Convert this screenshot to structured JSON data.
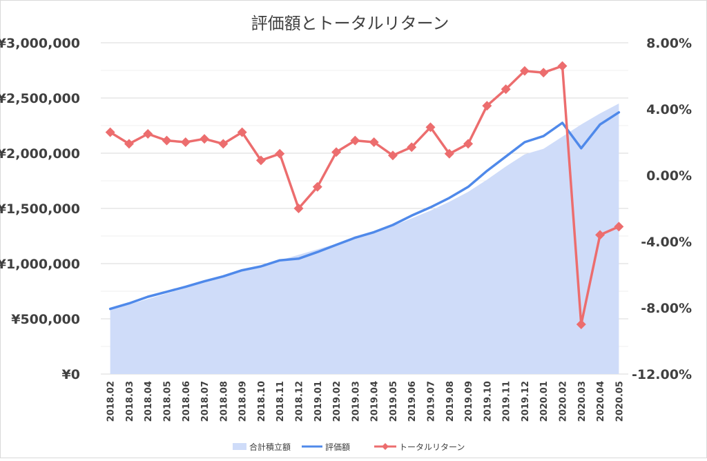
{
  "chart_data": {
    "type": "line",
    "title": "評価額とトータルリターン",
    "categories": [
      "2018.02",
      "2018.03",
      "2018.04",
      "2018.05",
      "2018.06",
      "2018.07",
      "2018.08",
      "2018.09",
      "2018.10",
      "2018.11",
      "2018.12",
      "2019.01",
      "2019.02",
      "2019.03",
      "2019.04",
      "2019.05",
      "2019.06",
      "2019.07",
      "2019.08",
      "2019.09",
      "2019.10",
      "2019.11",
      "2019.12",
      "2020.01",
      "2020.02",
      "2020.03",
      "2020.04",
      "2020.05"
    ],
    "series": [
      {
        "name": "合計積立額",
        "type": "area",
        "axis": "left",
        "color": "#cfdcf9",
        "values": [
          580000,
          630000,
          680000,
          730000,
          780000,
          830000,
          880000,
          930000,
          980000,
          1030000,
          1080000,
          1130000,
          1180000,
          1230000,
          1280000,
          1340000,
          1410000,
          1480000,
          1560000,
          1650000,
          1760000,
          1880000,
          1990000,
          2040000,
          2150000,
          2260000,
          2360000,
          2450000
        ]
      },
      {
        "name": "評価額",
        "type": "line",
        "axis": "left",
        "color": "#4f89ea",
        "values": [
          590000,
          640000,
          700000,
          745000,
          790000,
          840000,
          885000,
          940000,
          975000,
          1030000,
          1045000,
          1105000,
          1170000,
          1235000,
          1285000,
          1350000,
          1435000,
          1510000,
          1595000,
          1695000,
          1840000,
          1970000,
          2100000,
          2155000,
          2275000,
          2045000,
          2260000,
          2370000
        ]
      },
      {
        "name": "トータルリターン",
        "type": "line",
        "axis": "right",
        "marker": "diamond",
        "color": "#ec6d6e",
        "values": [
          2.6,
          1.9,
          2.5,
          2.1,
          2.0,
          2.2,
          1.9,
          2.6,
          0.9,
          1.3,
          -2.0,
          -0.7,
          1.4,
          2.1,
          2.0,
          1.2,
          1.7,
          2.9,
          1.3,
          1.9,
          4.2,
          5.2,
          6.3,
          6.2,
          6.6,
          -9.0,
          -3.6,
          -3.1
        ]
      }
    ],
    "y_left": {
      "min": 0,
      "max": 3000000,
      "ticks": [
        0,
        500000,
        1000000,
        1500000,
        2000000,
        2500000,
        3000000
      ],
      "tick_labels": [
        "¥0",
        "¥500,000",
        "¥1,000,000",
        "¥1,500,000",
        "¥2,000,000",
        "¥2,500,000",
        "¥3,000,000"
      ]
    },
    "y_right": {
      "min": -12,
      "max": 8,
      "ticks": [
        -12,
        -8,
        -4,
        0,
        4,
        8
      ],
      "tick_labels": [
        "-12.00%",
        "-8.00%",
        "-4.00%",
        "0.00%",
        "4.00%",
        "8.00%"
      ]
    },
    "grid": true,
    "legend_position": "bottom"
  }
}
